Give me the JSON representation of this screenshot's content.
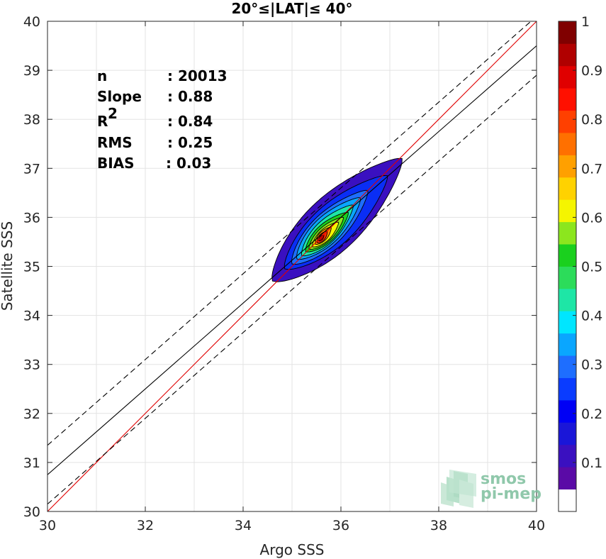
{
  "chart_data": {
    "type": "scatter",
    "subtype": "density-contour",
    "title": "20°≤|LAT|≤ 40°",
    "xlabel": "Argo SSS",
    "ylabel": "Satellite SSS",
    "xlim": [
      30,
      40
    ],
    "ylim": [
      30,
      40
    ],
    "xticks": [
      "30",
      "32",
      "34",
      "36",
      "38",
      "40"
    ],
    "yticks": [
      "30",
      "31",
      "32",
      "33",
      "34",
      "35",
      "36",
      "37",
      "38",
      "39",
      "40"
    ],
    "grid": true,
    "colorbar": {
      "range": [
        0,
        1
      ],
      "ticks": [
        "0.1",
        "0.2",
        "0.3",
        "0.4",
        "0.5",
        "0.6",
        "0.7",
        "0.8",
        "0.9",
        "1"
      ],
      "colors": [
        "#ffffff",
        "#5a0aa6",
        "#3a10c0",
        "#1a16d8",
        "#0000f5",
        "#0a3cff",
        "#1e6eff",
        "#0aa6ff",
        "#00e6ff",
        "#1ee6a6",
        "#2cdc5a",
        "#1ad01e",
        "#8ce61e",
        "#f5f500",
        "#ffd200",
        "#ffa000",
        "#ff7000",
        "#ff4000",
        "#ff1000",
        "#e00000",
        "#b00000",
        "#800000"
      ]
    },
    "stats": [
      {
        "label": "n",
        "value": ": 20013"
      },
      {
        "label": "Slope",
        "value": ": 0.88"
      },
      {
        "label": "R",
        "sup": "2",
        "value": ": 0.84"
      },
      {
        "label": "RMS",
        "value": ": 0.25"
      },
      {
        "label": "BIAS",
        "value": ": 0.03"
      }
    ],
    "lines": [
      {
        "name": "identity",
        "color": "#e00000",
        "style": "solid",
        "points": [
          [
            30,
            30
          ],
          [
            40,
            40
          ]
        ]
      },
      {
        "name": "regression",
        "color": "#000000",
        "style": "solid",
        "points": [
          [
            30,
            30.75
          ],
          [
            40,
            39.5
          ]
        ]
      },
      {
        "name": "regression-upper",
        "color": "#000000",
        "style": "dashed",
        "points": [
          [
            30,
            31.35
          ],
          [
            40,
            40.1
          ]
        ]
      },
      {
        "name": "regression-lower",
        "color": "#000000",
        "style": "dashed",
        "points": [
          [
            30,
            30.15
          ],
          [
            40,
            38.9
          ]
        ]
      }
    ],
    "density": {
      "center": [
        35.6,
        35.6
      ],
      "levels": [
        {
          "level": 0.05,
          "color": "#3a10c0",
          "x0": 34.6,
          "y0": 34.7,
          "x1": 37.25,
          "y1": 37.2,
          "w": 0.55
        },
        {
          "level": 0.15,
          "color": "#0a2ef5",
          "x0": 34.85,
          "y0": 34.95,
          "x1": 36.95,
          "y1": 36.85,
          "w": 0.42
        },
        {
          "level": 0.25,
          "color": "#1e6eff",
          "x0": 35.0,
          "y0": 35.05,
          "x1": 36.55,
          "y1": 36.55,
          "w": 0.33
        },
        {
          "level": 0.35,
          "color": "#0aa6ff",
          "x0": 35.1,
          "y0": 35.15,
          "x1": 36.4,
          "y1": 36.4,
          "w": 0.28
        },
        {
          "level": 0.45,
          "color": "#1ee6a6",
          "x0": 35.2,
          "y0": 35.22,
          "x1": 36.25,
          "y1": 36.25,
          "w": 0.23
        },
        {
          "level": 0.55,
          "color": "#1ad01e",
          "x0": 35.28,
          "y0": 35.3,
          "x1": 36.15,
          "y1": 36.1,
          "w": 0.19
        },
        {
          "level": 0.65,
          "color": "#8ce61e",
          "x0": 35.35,
          "y0": 35.35,
          "x1": 36.05,
          "y1": 36.0,
          "w": 0.15
        },
        {
          "level": 0.7,
          "color": "#f5f500",
          "x0": 35.42,
          "y0": 35.4,
          "x1": 35.95,
          "y1": 35.9,
          "w": 0.12
        },
        {
          "level": 0.8,
          "color": "#ff8c00",
          "x0": 35.48,
          "y0": 35.45,
          "x1": 35.8,
          "y1": 35.8,
          "w": 0.09
        },
        {
          "level": 0.9,
          "color": "#ff2800",
          "x0": 35.52,
          "y0": 35.48,
          "x1": 35.72,
          "y1": 35.72,
          "w": 0.065
        },
        {
          "level": 1.0,
          "color": "#b00000",
          "x0": 35.55,
          "y0": 35.52,
          "x1": 35.65,
          "y1": 35.64,
          "w": 0.035
        }
      ]
    }
  },
  "logo": {
    "line1": "smos",
    "line2": "pi-mep"
  }
}
